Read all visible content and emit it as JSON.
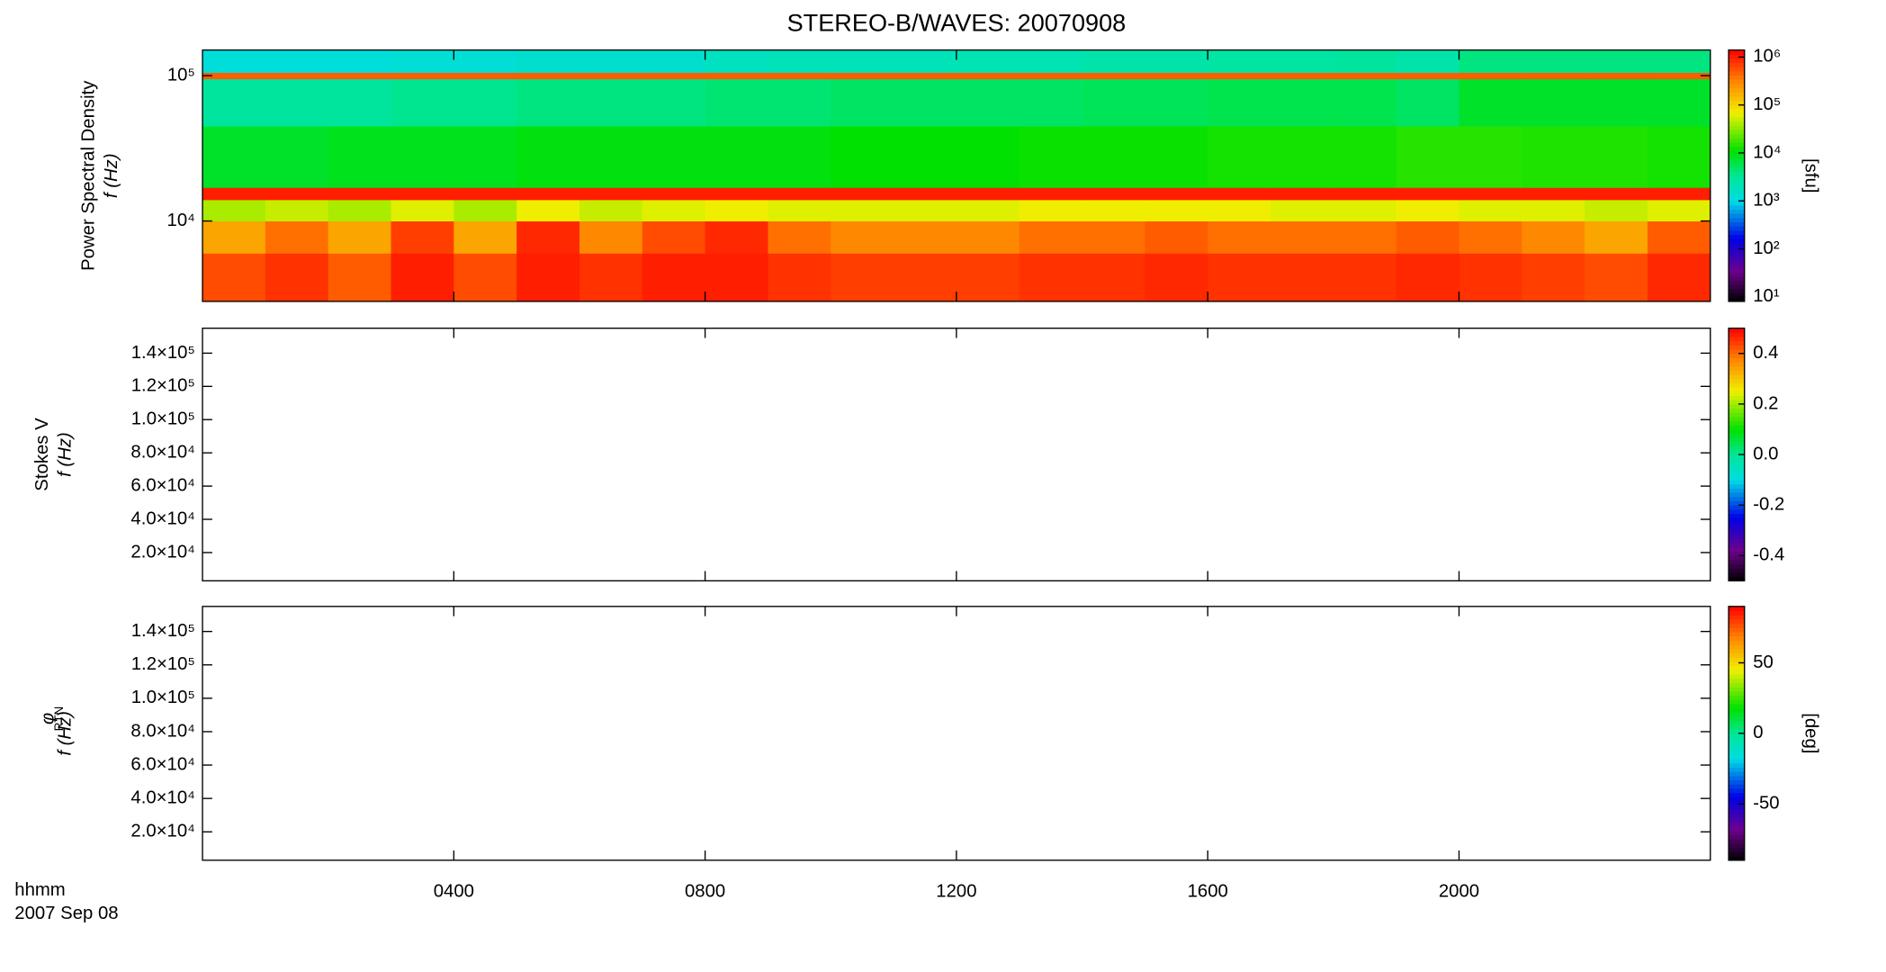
{
  "chart_data": [
    {
      "type": "heatmap",
      "title": "STEREO-B/WAVES: 20070908",
      "ylabel": "Power Spectral Density",
      "ylabel2": "f (Hz)",
      "x_edges": [
        0,
        1,
        2,
        3,
        4,
        5,
        6,
        7,
        8,
        9,
        10,
        11,
        12,
        13,
        14,
        15,
        16,
        17,
        18,
        19,
        20,
        21,
        22,
        23,
        24
      ],
      "y_edges": [
        2800,
        6000,
        10000,
        14000,
        17000,
        45000,
        95000,
        105000,
        150000
      ],
      "values": [
        [
          600000,
          800000,
          500000,
          1000000,
          600000,
          1000000,
          800000,
          1000000,
          1000000,
          800000,
          700000,
          700000,
          700000,
          800000,
          800000,
          900000,
          800000,
          800000,
          800000,
          900000,
          800000,
          700000,
          600000,
          900000
        ],
        [
          200000,
          400000,
          200000,
          700000,
          200000,
          900000,
          300000,
          600000,
          900000,
          400000,
          300000,
          300000,
          300000,
          400000,
          400000,
          500000,
          400000,
          400000,
          400000,
          500000,
          400000,
          300000,
          200000,
          500000
        ],
        [
          40000,
          50000,
          40000,
          60000,
          40000,
          70000,
          50000,
          60000,
          70000,
          60000,
          60000,
          60000,
          60000,
          70000,
          70000,
          70000,
          70000,
          60000,
          60000,
          70000,
          60000,
          60000,
          50000,
          60000
        ],
        [
          1000000,
          1000000,
          1000000,
          1000000,
          1000000,
          1000000,
          1000000,
          1000000,
          1000000,
          1000000,
          1000000,
          1000000,
          1000000,
          1000000,
          1000000,
          1000000,
          1000000,
          1000000,
          1000000,
          1000000,
          1000000,
          1000000,
          1000000,
          1000000
        ],
        [
          8000,
          8000,
          9000,
          9000,
          9000,
          10000,
          10000,
          10000,
          10000,
          10000,
          11000,
          11000,
          11000,
          12000,
          12000,
          12000,
          13000,
          13000,
          13000,
          15000,
          15000,
          14000,
          14000,
          13000
        ],
        [
          3000,
          3000,
          3000,
          3500,
          3500,
          4000,
          4000,
          4000,
          4500,
          4500,
          5000,
          5000,
          5000,
          5000,
          5500,
          5500,
          6000,
          6000,
          6000,
          5000,
          8000,
          8000,
          8000,
          8000
        ],
        [
          500000,
          500000,
          500000,
          500000,
          500000,
          500000,
          500000,
          500000,
          500000,
          500000,
          500000,
          500000,
          500000,
          500000,
          500000,
          500000,
          500000,
          500000,
          500000,
          500000,
          500000,
          500000,
          500000,
          500000
        ],
        [
          1200,
          1200,
          1200,
          1300,
          1300,
          1500,
          1500,
          1500,
          1800,
          2000,
          2000,
          2000,
          2200,
          2200,
          2500,
          2500,
          2800,
          2800,
          3000,
          2500,
          4000,
          4000,
          4000,
          4000
        ]
      ],
      "xlim": [
        0,
        24
      ],
      "ylim": [
        2800,
        150000
      ],
      "yscale": "log",
      "yticks": [
        {
          "value": 10000,
          "label": "10⁴"
        },
        {
          "value": 100000,
          "label": "10⁵"
        }
      ],
      "colormap": "rainbow",
      "cscale": "log",
      "clim": [
        8,
        1400000
      ],
      "cticks": [
        {
          "value": 10,
          "label": "10¹"
        },
        {
          "value": 100,
          "label": "10²"
        },
        {
          "value": 1000,
          "label": "10³"
        },
        {
          "value": 10000,
          "label": "10⁴"
        },
        {
          "value": 100000,
          "label": "10⁵"
        },
        {
          "value": 1000000,
          "label": "10⁶"
        }
      ],
      "clabel": "[sfu]"
    },
    {
      "type": "heatmap",
      "ylabel": "Stokes V",
      "ylabel2": "f (Hz)",
      "xlim": [
        0,
        24
      ],
      "ylim": [
        3000,
        155000
      ],
      "yscale": "linear",
      "yticks": [
        {
          "value": 20000,
          "label": "2.0×10⁴"
        },
        {
          "value": 40000,
          "label": "4.0×10⁴"
        },
        {
          "value": 60000,
          "label": "6.0×10⁴"
        },
        {
          "value": 80000,
          "label": "8.0×10⁴"
        },
        {
          "value": 100000,
          "label": "1.0×10⁵"
        },
        {
          "value": 120000,
          "label": "1.2×10⁵"
        },
        {
          "value": 140000,
          "label": "1.4×10⁵"
        }
      ],
      "colormap": "rainbow",
      "cscale": "linear",
      "clim": [
        -0.5,
        0.5
      ],
      "cticks": [
        -0.4,
        -0.2,
        {
          "value": 0,
          "label": "0.0"
        },
        0.2,
        0.4
      ]
    },
    {
      "type": "heatmap",
      "ylabel": "φ",
      "ylabel_subscript": "RTN",
      "ylabel2": "f (Hz)",
      "xlim": [
        0,
        24
      ],
      "ylim": [
        3000,
        155000
      ],
      "yscale": "linear",
      "yticks": [
        {
          "value": 20000,
          "label": "2.0×10⁴"
        },
        {
          "value": 40000,
          "label": "4.0×10⁴"
        },
        {
          "value": 60000,
          "label": "6.0×10⁴"
        },
        {
          "value": 80000,
          "label": "8.0×10⁴"
        },
        {
          "value": 100000,
          "label": "1.0×10⁵"
        },
        {
          "value": 120000,
          "label": "1.2×10⁵"
        },
        {
          "value": 140000,
          "label": "1.4×10⁵"
        }
      ],
      "colormap": "rainbow",
      "cscale": "linear",
      "clim": [
        -90,
        90
      ],
      "cticks": [
        -50,
        0,
        50
      ],
      "clabel": "[deg]",
      "xticks": [
        {
          "value": 4,
          "label": "0400"
        },
        {
          "value": 8,
          "label": "0800"
        },
        {
          "value": 12,
          "label": "1200"
        },
        {
          "value": 16,
          "label": "1600"
        },
        {
          "value": 20,
          "label": "2000"
        }
      ]
    }
  ],
  "footer": {
    "lines": [
      "hhmm",
      "2007 Sep 08"
    ]
  }
}
